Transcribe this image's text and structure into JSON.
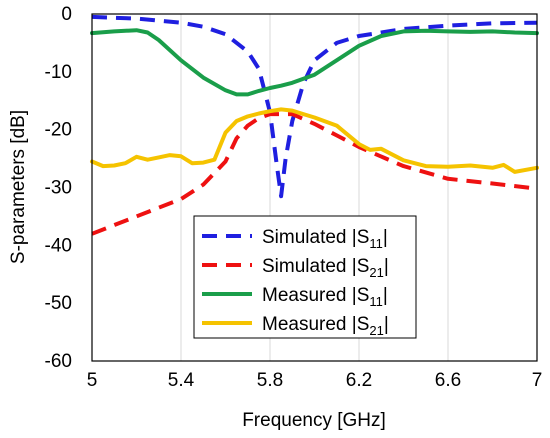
{
  "chart_data": {
    "type": "line",
    "title": "",
    "xlabel": "Frequency [GHz]",
    "ylabel": "S-parameters [dB]",
    "xlim": [
      5,
      7
    ],
    "ylim": [
      -60,
      0
    ],
    "xticks": [
      "5",
      "5.4",
      "5.8",
      "6.2",
      "6.6",
      "7"
    ],
    "yticks": [
      "0",
      "-10",
      "-20",
      "-30",
      "-40",
      "-50",
      "-60"
    ],
    "grid": "vertical",
    "legend_position": "center-bottom",
    "series": [
      {
        "name": "Simulated |S11|",
        "label_main": "Simulated |S",
        "label_sub": "11",
        "label_end": "|",
        "color": "#1f1fe0",
        "style": "dashed",
        "x": [
          5.0,
          5.2,
          5.4,
          5.5,
          5.6,
          5.7,
          5.75,
          5.8,
          5.83,
          5.85,
          5.87,
          5.9,
          5.95,
          6.0,
          6.1,
          6.2,
          6.4,
          6.6,
          6.8,
          7.0
        ],
        "y": [
          -0.5,
          -0.8,
          -1.5,
          -2.2,
          -3.5,
          -6.5,
          -9.5,
          -17,
          -26,
          -31.5,
          -25,
          -18.5,
          -12,
          -8,
          -5,
          -3.8,
          -2.6,
          -2,
          -1.6,
          -1.5
        ]
      },
      {
        "name": "Simulated |S21|",
        "label_main": "Simulated |S",
        "label_sub": "21",
        "label_end": "|",
        "color": "#ee1111",
        "style": "dashed",
        "x": [
          5.0,
          5.1,
          5.2,
          5.3,
          5.4,
          5.5,
          5.6,
          5.65,
          5.7,
          5.75,
          5.8,
          5.9,
          6.0,
          6.1,
          6.2,
          6.4,
          6.6,
          6.8,
          7.0
        ],
        "y": [
          -38,
          -36.5,
          -35,
          -33.5,
          -32,
          -29.5,
          -25.5,
          -21.5,
          -19.3,
          -18,
          -17.3,
          -17.3,
          -19,
          -21,
          -23,
          -26.3,
          -28.5,
          -29.3,
          -30.2
        ]
      },
      {
        "name": "Measured |S11|",
        "label_main": "Measured |S",
        "label_sub": "11",
        "label_end": "|",
        "color": "#1a9e4a",
        "style": "solid",
        "x": [
          5.0,
          5.1,
          5.2,
          5.25,
          5.3,
          5.4,
          5.5,
          5.6,
          5.65,
          5.7,
          5.75,
          5.8,
          5.85,
          5.9,
          6.0,
          6.1,
          6.2,
          6.3,
          6.4,
          6.5,
          6.6,
          6.7,
          6.8,
          6.9,
          7.0
        ],
        "y": [
          -3.3,
          -3.0,
          -2.8,
          -3.2,
          -4.5,
          -8,
          -11,
          -13.2,
          -13.9,
          -13.9,
          -13.3,
          -12.8,
          -12.4,
          -11.9,
          -10.5,
          -8,
          -5.5,
          -3.8,
          -3,
          -2.9,
          -3.0,
          -3.1,
          -3.0,
          -3.2,
          -3.3
        ]
      },
      {
        "name": "Measured |S21|",
        "label_main": "Measured |S",
        "label_sub": "21",
        "label_end": "|",
        "color": "#f5c300",
        "style": "solid",
        "x": [
          5.0,
          5.05,
          5.1,
          5.15,
          5.2,
          5.25,
          5.3,
          5.35,
          5.4,
          5.45,
          5.5,
          5.55,
          5.6,
          5.65,
          5.7,
          5.75,
          5.8,
          5.85,
          5.9,
          5.95,
          6.0,
          6.1,
          6.2,
          6.25,
          6.3,
          6.4,
          6.5,
          6.6,
          6.7,
          6.8,
          6.85,
          6.9,
          7.0
        ],
        "y": [
          -25.5,
          -26.3,
          -26.2,
          -25.8,
          -24.7,
          -25.2,
          -24.8,
          -24.4,
          -24.6,
          -25.8,
          -25.7,
          -25.2,
          -20.5,
          -18.5,
          -17.7,
          -17.2,
          -16.8,
          -16.5,
          -16.7,
          -17.3,
          -17.9,
          -19.3,
          -22.5,
          -23.5,
          -23.3,
          -25.3,
          -26.3,
          -26.4,
          -26.2,
          -26.6,
          -26.1,
          -27.3,
          -26.6
        ]
      }
    ]
  }
}
